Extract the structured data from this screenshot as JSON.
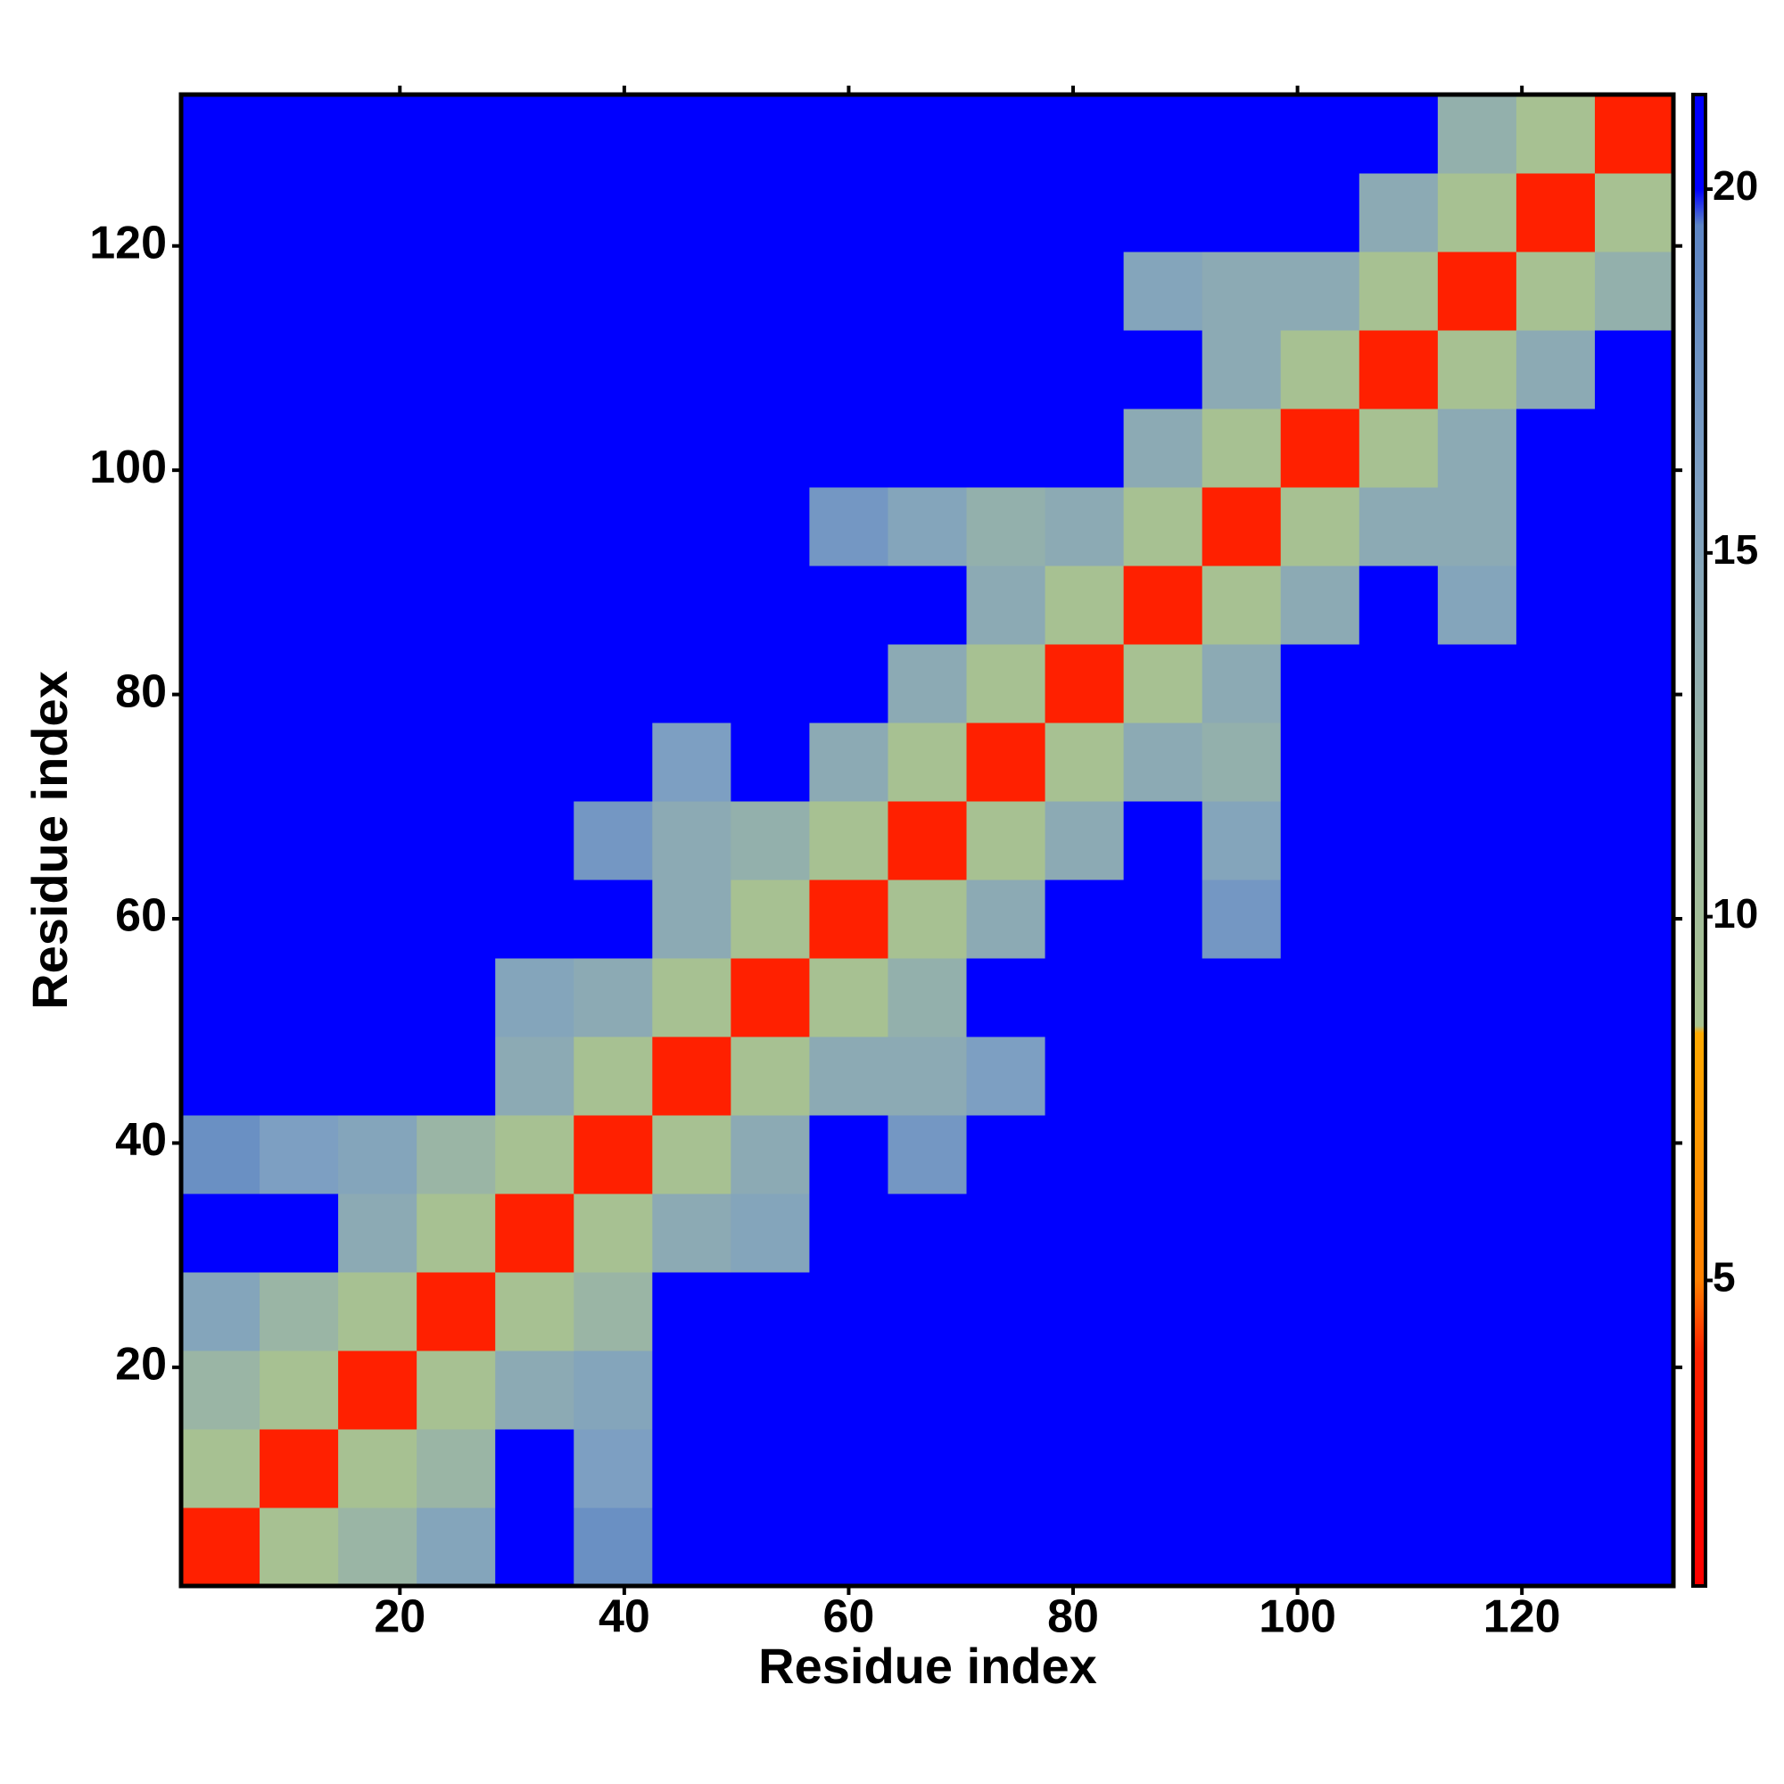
{
  "chart_data": {
    "type": "heatmap",
    "xlabel": "Residue index",
    "ylabel": "Residue index",
    "xbins": [
      0.5,
      7.5,
      14.5,
      21.5,
      28.5,
      35.5,
      42.5,
      49.5,
      56.5,
      63.5,
      70.5,
      77.5,
      84.5,
      91.5,
      98.5,
      105.5,
      112.5,
      119.5,
      126.5,
      133.5
    ],
    "ybins": [
      0.5,
      7.5,
      14.5,
      21.5,
      28.5,
      35.5,
      42.5,
      49.5,
      56.5,
      63.5,
      70.5,
      77.5,
      84.5,
      91.5,
      98.5,
      105.5,
      112.5,
      119.5,
      126.5,
      133.5
    ],
    "z": [
      [
        3.8,
        9,
        12,
        15,
        21,
        18,
        21,
        21,
        21,
        21,
        21,
        21,
        21,
        21,
        21,
        21,
        21,
        21,
        21
      ],
      [
        9,
        3.8,
        9,
        12,
        21,
        16,
        21,
        21,
        21,
        21,
        21,
        21,
        21,
        21,
        21,
        21,
        21,
        21,
        21
      ],
      [
        12,
        9,
        3.8,
        9,
        14,
        15,
        21,
        21,
        21,
        21,
        21,
        21,
        21,
        21,
        21,
        21,
        21,
        21,
        21
      ],
      [
        15,
        12,
        9,
        3.8,
        9,
        12,
        21,
        21,
        21,
        21,
        21,
        21,
        21,
        21,
        21,
        21,
        21,
        21,
        21
      ],
      [
        21,
        21,
        14,
        9,
        3.8,
        9,
        14,
        15,
        21,
        21,
        21,
        21,
        21,
        21,
        21,
        21,
        21,
        21,
        21
      ],
      [
        18,
        16,
        15,
        12,
        9,
        3.8,
        9,
        14,
        21,
        17,
        21,
        21,
        21,
        21,
        21,
        21,
        21,
        21,
        21
      ],
      [
        21,
        21,
        21,
        21,
        14,
        9,
        3.8,
        9,
        14,
        14,
        16,
        21,
        21,
        21,
        21,
        21,
        21,
        21,
        21
      ],
      [
        21,
        21,
        21,
        21,
        15,
        14,
        9,
        3.8,
        9,
        13,
        21,
        21,
        21,
        21,
        21,
        21,
        21,
        21,
        21
      ],
      [
        21,
        21,
        21,
        21,
        21,
        21,
        14,
        9,
        3.8,
        9,
        14,
        21,
        21,
        17,
        21,
        21,
        21,
        21,
        21
      ],
      [
        21,
        21,
        21,
        21,
        21,
        17,
        14,
        13,
        9,
        3.8,
        9,
        14,
        21,
        15,
        21,
        21,
        21,
        21,
        21
      ],
      [
        21,
        21,
        21,
        21,
        21,
        21,
        16,
        21,
        14,
        9,
        3.8,
        9,
        14,
        13,
        21,
        21,
        21,
        21,
        21
      ],
      [
        21,
        21,
        21,
        21,
        21,
        21,
        21,
        21,
        21,
        14,
        9,
        3.8,
        9,
        14,
        21,
        21,
        21,
        21,
        21
      ],
      [
        21,
        21,
        21,
        21,
        21,
        21,
        21,
        21,
        21,
        21,
        14,
        9,
        3.8,
        9,
        14,
        21,
        15,
        21,
        21
      ],
      [
        21,
        21,
        21,
        21,
        21,
        21,
        21,
        21,
        17,
        15,
        13,
        14,
        9,
        3.8,
        9,
        14,
        14,
        21,
        21
      ],
      [
        21,
        21,
        21,
        21,
        21,
        21,
        21,
        21,
        21,
        21,
        21,
        21,
        14,
        9,
        3.8,
        9,
        14,
        21,
        21
      ],
      [
        21,
        21,
        21,
        21,
        21,
        21,
        21,
        21,
        21,
        21,
        21,
        21,
        21,
        14,
        9,
        3.8,
        9,
        14,
        21
      ],
      [
        21,
        21,
        21,
        21,
        21,
        21,
        21,
        21,
        21,
        21,
        21,
        21,
        15,
        14,
        14,
        9,
        3.8,
        9,
        13
      ],
      [
        21,
        21,
        21,
        21,
        21,
        21,
        21,
        21,
        21,
        21,
        21,
        21,
        21,
        21,
        21,
        14,
        9,
        3.8,
        9
      ],
      [
        21,
        21,
        21,
        21,
        21,
        21,
        21,
        21,
        21,
        21,
        21,
        21,
        21,
        21,
        21,
        21,
        13,
        9,
        3.8
      ]
    ],
    "xlim": [
      0.5,
      133.5
    ],
    "ylim": [
      0.5,
      133.5
    ],
    "xticks": [
      20,
      40,
      60,
      80,
      100,
      120
    ],
    "yticks": [
      20,
      40,
      60,
      80,
      100,
      120
    ],
    "colorbar": {
      "lim": [
        0.8,
        21.3
      ],
      "ticks": [
        5,
        10,
        15,
        20
      ]
    },
    "colorscale": [
      [
        0.8,
        "#ff0000"
      ],
      [
        4,
        "#ff2200"
      ],
      [
        5,
        "#ff8000"
      ],
      [
        8.4,
        "#ffaa00"
      ],
      [
        8.5,
        "#a9c38f"
      ],
      [
        12,
        "#9ab5a5"
      ],
      [
        16,
        "#7d9fc2"
      ],
      [
        19.5,
        "#5c84c4"
      ],
      [
        20,
        "#0000ff"
      ],
      [
        21.3,
        "#0000ff"
      ]
    ]
  }
}
